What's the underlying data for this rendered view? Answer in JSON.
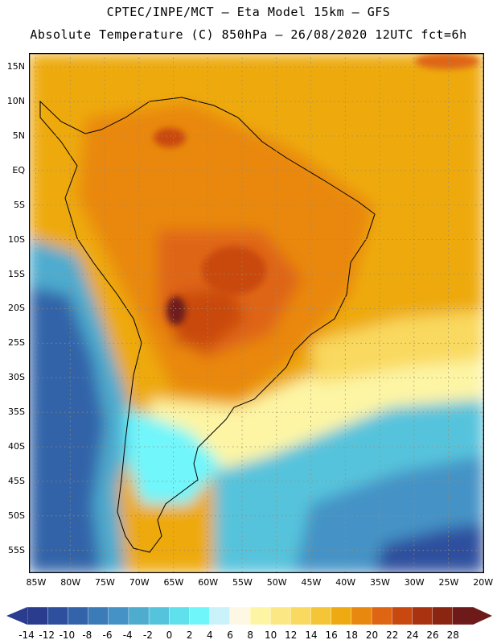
{
  "title_line1": "CPTEC/INPE/MCT –  Eta Model 15km – GFS",
  "title_line2": "Absolute Temperature (C) 850hPa – 26/08/2020 12UTC fct=6h",
  "map": {
    "lon_range": [
      -86,
      -19.8
    ],
    "lat_range": [
      17,
      -58.3
    ],
    "lat_ticks": [
      {
        "value": 15,
        "label": "15N"
      },
      {
        "value": 10,
        "label": "10N"
      },
      {
        "value": 5,
        "label": "5N"
      },
      {
        "value": 0,
        "label": "EQ"
      },
      {
        "value": -5,
        "label": "5S"
      },
      {
        "value": -10,
        "label": "10S"
      },
      {
        "value": -15,
        "label": "15S"
      },
      {
        "value": -20,
        "label": "20S"
      },
      {
        "value": -25,
        "label": "25S"
      },
      {
        "value": -30,
        "label": "30S"
      },
      {
        "value": -35,
        "label": "35S"
      },
      {
        "value": -40,
        "label": "40S"
      },
      {
        "value": -45,
        "label": "45S"
      },
      {
        "value": -50,
        "label": "50S"
      },
      {
        "value": -55,
        "label": "55S"
      }
    ],
    "lon_ticks": [
      {
        "value": -85,
        "label": "85W"
      },
      {
        "value": -80,
        "label": "80W"
      },
      {
        "value": -75,
        "label": "75W"
      },
      {
        "value": -70,
        "label": "70W"
      },
      {
        "value": -65,
        "label": "65W"
      },
      {
        "value": -60,
        "label": "60W"
      },
      {
        "value": -55,
        "label": "55W"
      },
      {
        "value": -50,
        "label": "50W"
      },
      {
        "value": -45,
        "label": "45W"
      },
      {
        "value": -40,
        "label": "40W"
      },
      {
        "value": -35,
        "label": "35W"
      },
      {
        "value": -30,
        "label": "30W"
      },
      {
        "value": -25,
        "label": "25W"
      },
      {
        "value": -20,
        "label": "20W"
      }
    ],
    "grid": true
  },
  "colorbar": {
    "labels": [
      "-14",
      "-12",
      "-10",
      "-8",
      "-6",
      "-4",
      "-2",
      "0",
      "2",
      "4",
      "6",
      "8",
      "10",
      "12",
      "14",
      "16",
      "18",
      "20",
      "22",
      "24",
      "26",
      "28"
    ],
    "colors": [
      "#2a3c8e",
      "#2d4f9e",
      "#3363a9",
      "#3a7bb8",
      "#4593c6",
      "#4eaccf",
      "#56c3dc",
      "#5fe0ec",
      "#6ff6fb",
      "#c9f2fb",
      "#fef7e3",
      "#fdf5a4",
      "#fbe884",
      "#f9d95f",
      "#f4c537",
      "#eeaa10",
      "#e9880f",
      "#df6512",
      "#c9480f",
      "#a93310",
      "#8a2511",
      "#6e1a1a"
    ]
  }
}
